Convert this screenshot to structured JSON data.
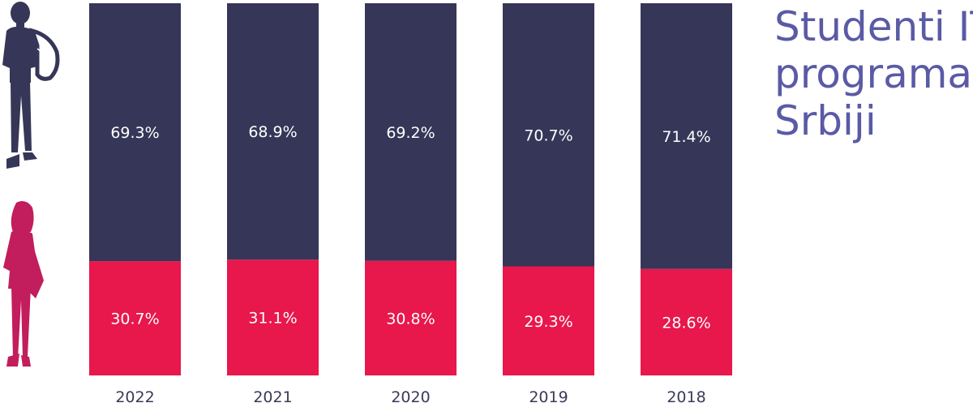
{
  "title_lines": [
    "Studenti IT",
    "programa u",
    "Srbiji"
  ],
  "colors": {
    "male": "#363658",
    "female": "#e8174c",
    "female_figure": "#c21d5c",
    "title": "#5a5aa6",
    "label": "#ffffff",
    "axis_text": "#3a3a5a"
  },
  "icons": [
    "male-student-icon",
    "female-student-icon"
  ],
  "chart_data": {
    "type": "bar",
    "stacked": true,
    "percent": true,
    "categories": [
      "2022",
      "2021",
      "2020",
      "2019",
      "2018"
    ],
    "series": [
      {
        "values": [
          30.7,
          31.1,
          30.8,
          29.3,
          28.6
        ],
        "labels": [
          "30.7%",
          "31.1%",
          "30.8%",
          "29.3%",
          "28.6%"
        ]
      },
      {
        "values": [
          69.3,
          68.9,
          69.2,
          70.7,
          71.4
        ],
        "labels": [
          "69.3%",
          "68.9%",
          "69.2%",
          "70.7%",
          "71.4%"
        ]
      }
    ],
    "ylim": [
      0,
      100
    ],
    "grid": false,
    "legend": "none"
  }
}
